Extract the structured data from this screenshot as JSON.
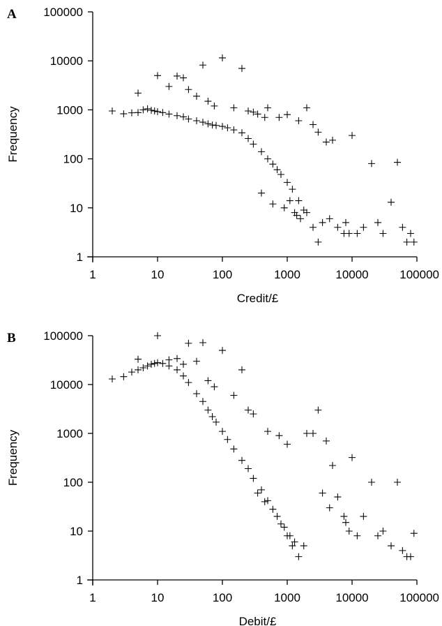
{
  "chart_data": [
    {
      "type": "scatter",
      "panel_label": "A",
      "xlabel": "Credit/£",
      "ylabel": "Frequency",
      "x_scale": "log",
      "y_scale": "log",
      "xlim": [
        1,
        100000
      ],
      "ylim": [
        1,
        100000
      ],
      "x_ticks": [
        "1",
        "10",
        "100",
        "1000",
        "10000",
        "100000"
      ],
      "y_ticks": [
        "1",
        "10",
        "100",
        "1000",
        "10000",
        "100000"
      ],
      "marker": "+",
      "grid": false,
      "legend": "none",
      "series": [
        {
          "x": [
            2,
            3,
            4,
            5,
            6,
            7,
            8,
            9,
            10,
            12,
            15,
            20,
            25,
            30,
            40,
            50,
            60,
            70,
            80,
            100,
            120,
            150,
            200,
            250,
            300,
            400,
            500,
            600,
            700,
            800,
            1000,
            1200,
            1500,
            2000,
            2500,
            3000,
            5,
            10,
            20,
            25,
            50,
            100,
            200,
            15,
            30,
            40,
            60,
            75,
            150,
            250,
            300,
            350,
            450,
            500,
            750,
            1000,
            1500,
            2000,
            2500,
            3000,
            4000,
            5000,
            10000,
            20000,
            50000,
            400,
            600,
            900,
            1100,
            1300,
            1400,
            1600,
            1800,
            3500,
            4500,
            6000,
            7500,
            8000,
            9000,
            12000,
            15000,
            25000,
            30000,
            40000,
            60000,
            70000,
            80000,
            90000
          ],
          "y": [
            950,
            830,
            870,
            880,
            1000,
            1050,
            980,
            950,
            920,
            880,
            820,
            760,
            720,
            650,
            600,
            560,
            520,
            490,
            480,
            460,
            430,
            390,
            340,
            260,
            200,
            140,
            100,
            78,
            60,
            48,
            33,
            24,
            14,
            8,
            4,
            2,
            2200,
            5000,
            4900,
            4500,
            8200,
            11500,
            7000,
            3000,
            2600,
            1900,
            1500,
            1200,
            1100,
            950,
            900,
            820,
            700,
            1100,
            700,
            800,
            600,
            1100,
            500,
            350,
            220,
            240,
            300,
            80,
            85,
            20,
            12,
            10,
            14,
            8,
            7,
            6,
            9,
            5,
            6,
            4,
            3,
            5,
            3,
            3,
            4,
            5,
            3,
            13,
            4,
            2,
            3,
            2
          ]
        }
      ]
    },
    {
      "type": "scatter",
      "panel_label": "B",
      "xlabel": "Debit/£",
      "ylabel": "Frequency",
      "x_scale": "log",
      "y_scale": "log",
      "xlim": [
        1,
        100000
      ],
      "ylim": [
        1,
        100000
      ],
      "x_ticks": [
        "1",
        "10",
        "100",
        "1000",
        "10000",
        "100000"
      ],
      "y_ticks": [
        "1",
        "10",
        "100",
        "1000",
        "10000",
        "100000"
      ],
      "marker": "+",
      "grid": false,
      "legend": "none",
      "series": [
        {
          "x": [
            2,
            3,
            4,
            5,
            6,
            7,
            8,
            9,
            10,
            12,
            15,
            20,
            25,
            30,
            40,
            50,
            60,
            70,
            80,
            100,
            120,
            150,
            200,
            250,
            300,
            400,
            500,
            600,
            700,
            800,
            1000,
            1200,
            1500,
            5,
            10,
            20,
            30,
            50,
            100,
            200,
            15,
            25,
            40,
            60,
            75,
            150,
            250,
            300,
            500,
            750,
            1000,
            2000,
            2500,
            3000,
            4000,
            5000,
            10000,
            20000,
            50000,
            350,
            450,
            900,
            1100,
            1300,
            1800,
            3500,
            4500,
            6000,
            7500,
            8000,
            9000,
            12000,
            15000,
            25000,
            30000,
            40000,
            60000,
            70000,
            80000,
            90000
          ],
          "y": [
            13000,
            14500,
            18000,
            20000,
            22000,
            24000,
            26000,
            27000,
            28000,
            27000,
            24000,
            20000,
            15000,
            11000,
            6500,
            4500,
            3000,
            2200,
            1700,
            1100,
            750,
            480,
            280,
            190,
            120,
            70,
            42,
            28,
            20,
            14,
            8,
            5,
            3,
            33000,
            100000,
            34000,
            70000,
            72000,
            50000,
            20000,
            32000,
            26000,
            30000,
            12000,
            9000,
            6000,
            3000,
            2500,
            1100,
            900,
            600,
            1000,
            1000,
            3000,
            700,
            220,
            320,
            100,
            100,
            60,
            40,
            12,
            8,
            6,
            5,
            60,
            30,
            50,
            20,
            15,
            10,
            8,
            20,
            8,
            10,
            5,
            4,
            3,
            3,
            9
          ]
        }
      ]
    }
  ]
}
